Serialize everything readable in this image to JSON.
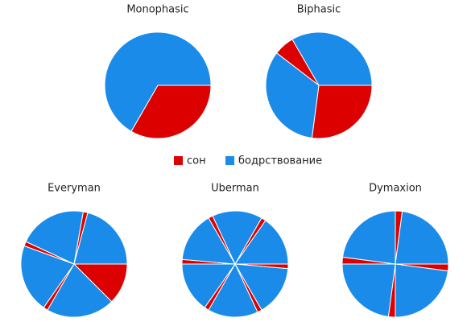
{
  "chart_data": [
    {
      "type": "pie",
      "title": "Monophasic",
      "values": [
        8,
        16
      ],
      "colors": [
        "#dc0000",
        "#1a8be8"
      ]
    },
    {
      "type": "pie",
      "title": "Biphasic",
      "values": [
        6.5,
        8,
        1.5,
        8
      ],
      "colors": [
        "#dc0000",
        "#1a8be8",
        "#dc0000",
        "#1a8be8"
      ]
    },
    {
      "type": "pie",
      "title": "Everyman",
      "values": [
        3,
        5,
        0.33,
        5,
        0.33,
        5,
        0.33,
        5
      ],
      "colors": [
        "#dc0000",
        "#1a8be8",
        "#dc0000",
        "#1a8be8",
        "#dc0000",
        "#1a8be8",
        "#dc0000",
        "#1a8be8"
      ]
    },
    {
      "type": "pie",
      "title": "Uberman",
      "values": [
        0.33,
        3.67,
        0.33,
        3.67,
        0.33,
        3.67,
        0.33,
        3.67,
        0.33,
        3.67,
        0.33,
        3.67
      ],
      "colors": [
        "#dc0000",
        "#1a8be8",
        "#dc0000",
        "#1a8be8",
        "#dc0000",
        "#1a8be8",
        "#dc0000",
        "#1a8be8",
        "#dc0000",
        "#1a8be8",
        "#dc0000",
        "#1a8be8"
      ]
    },
    {
      "type": "pie",
      "title": "Dymaxion",
      "values": [
        0.5,
        5.5,
        0.5,
        5.5,
        0.5,
        5.5,
        0.5,
        5.5
      ],
      "colors": [
        "#dc0000",
        "#1a8be8",
        "#dc0000",
        "#1a8be8",
        "#dc0000",
        "#1a8be8",
        "#dc0000",
        "#1a8be8"
      ]
    }
  ],
  "legend": {
    "items": [
      {
        "name": "сон",
        "color": "#dc0000"
      },
      {
        "name": "бодрствование",
        "color": "#1a8be8"
      }
    ]
  }
}
